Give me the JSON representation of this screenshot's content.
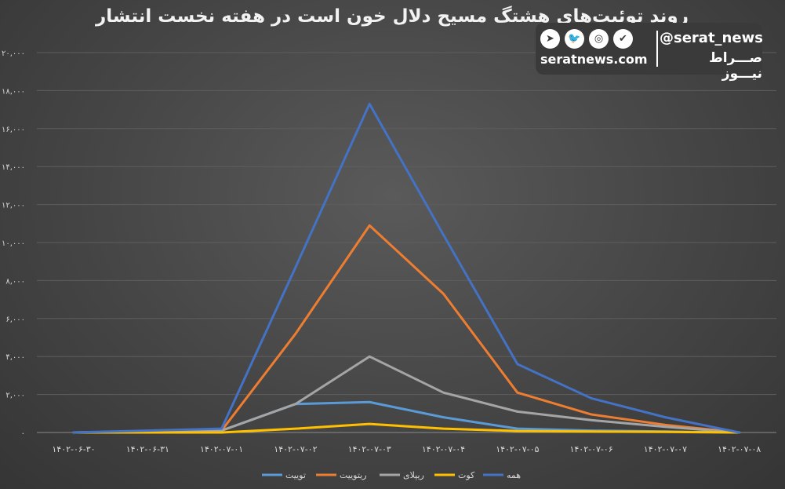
{
  "brand": {
    "handle": "@serat_news",
    "site": "seratnews.com",
    "name_fa": "صـــراط نیـــوز",
    "icons": [
      "telegram-icon",
      "twitter-icon",
      "instagram-icon",
      "shield-check-icon"
    ]
  },
  "chart_data": {
    "type": "line",
    "title": "روند توئیت‌های هشتگ مسیح دلال خون است در هفته نخست انتشار",
    "categories": [
      "۱۴۰۲-۰۶-۳۰",
      "۱۴۰۲-۰۶-۳۱",
      "۱۴۰۲-۰۷-۰۱",
      "۱۴۰۲-۰۷-۰۲",
      "۱۴۰۲-۰۷-۰۳",
      "۱۴۰۲-۰۷-۰۴",
      "۱۴۰۲-۰۷-۰۵",
      "۱۴۰۲-۰۷-۰۶",
      "۱۴۰۲-۰۷-۰۷",
      "۱۴۰۲-۰۷-۰۸"
    ],
    "yticks": [
      0,
      2000,
      4000,
      6000,
      8000,
      10000,
      12000,
      14000,
      16000,
      18000,
      20000
    ],
    "ytick_labels": [
      "۰",
      "۲,۰۰۰",
      "۴,۰۰۰",
      "۶,۰۰۰",
      "۸,۰۰۰",
      "۱۰,۰۰۰",
      "۱۲,۰۰۰",
      "۱۴,۰۰۰",
      "۱۶,۰۰۰",
      "۱۸,۰۰۰",
      "۲۰,۰۰۰"
    ],
    "ylim": [
      0,
      20000
    ],
    "grid": true,
    "legend_position": "bottom",
    "series": [
      {
        "name": "توییت",
        "color": "#5b9bd5",
        "values": [
          0,
          50,
          100,
          1500,
          1600,
          800,
          200,
          100,
          50,
          0
        ]
      },
      {
        "name": "ریتوییت",
        "color": "#ed7d31",
        "values": [
          0,
          50,
          100,
          5200,
          10900,
          7300,
          2100,
          950,
          400,
          0
        ]
      },
      {
        "name": "ریپلای",
        "color": "#a5a5a5",
        "values": [
          0,
          50,
          100,
          1500,
          4000,
          2100,
          1100,
          650,
          300,
          0
        ]
      },
      {
        "name": "کوت",
        "color": "#ffc000",
        "values": [
          0,
          0,
          0,
          200,
          450,
          200,
          80,
          50,
          30,
          0
        ]
      },
      {
        "name": "همه",
        "color": "#4472c4",
        "values": [
          0,
          100,
          200,
          8700,
          17300,
          10400,
          3600,
          1800,
          800,
          0
        ]
      }
    ]
  }
}
